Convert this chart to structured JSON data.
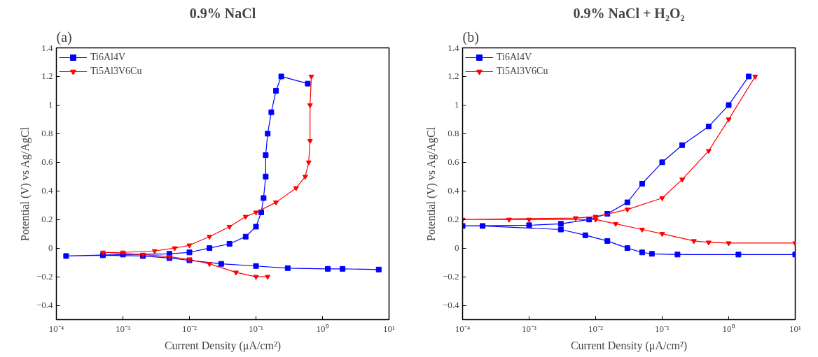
{
  "chart_data": [
    {
      "type": "line",
      "title": "0.9% NaCl",
      "annotations": [
        "(a)"
      ],
      "xlabel": "Current Density (μA/cm²)",
      "ylabel": "Potential (V) vs Ag/AgCl",
      "log": "x",
      "xlim": [
        0.0001,
        10
      ],
      "xticks": [
        {
          "value": 0.0001,
          "label": "10⁻⁴"
        },
        {
          "value": 0.001,
          "label": "10⁻³"
        },
        {
          "value": 0.01,
          "label": "10⁻²"
        },
        {
          "value": 0.1,
          "label": "10⁻¹"
        },
        {
          "value": 1,
          "label": "10⁰"
        },
        {
          "value": 10,
          "label": "10¹"
        }
      ],
      "ylim": [
        -0.5,
        1.4
      ],
      "yticks": [
        -0.4,
        -0.2,
        0.0,
        0.2,
        0.4,
        0.6,
        0.8,
        1.0,
        1.2,
        1.4
      ],
      "grid": false,
      "legend": "top left",
      "series": [
        {
          "name": "Ti6Al4V",
          "color": "#0000ff",
          "marker": "square",
          "x": [
            7,
            2,
            1.2,
            0.3,
            0.1,
            0.03,
            0.01,
            0.005,
            0.002,
            0.0005,
            0.00014,
            0.001,
            0.005,
            0.01,
            0.02,
            0.04,
            0.07,
            0.1,
            0.12,
            0.13,
            0.14,
            0.14,
            0.15,
            0.17,
            0.2,
            0.24,
            0.6
          ],
          "values": [
            -0.15,
            -0.145,
            -0.145,
            -0.14,
            -0.125,
            -0.11,
            -0.085,
            -0.07,
            -0.055,
            -0.05,
            -0.055,
            -0.045,
            -0.04,
            -0.03,
            0.0,
            0.03,
            0.08,
            0.15,
            0.25,
            0.35,
            0.5,
            0.65,
            0.8,
            0.95,
            1.1,
            1.2,
            1.15
          ]
        },
        {
          "name": "Ti5Al3V6Cu",
          "color": "#ff0000",
          "marker": "triangle",
          "x": [
            0.15,
            0.1,
            0.05,
            0.02,
            0.01,
            0.005,
            0.002,
            0.0005,
            0.001,
            0.003,
            0.006,
            0.01,
            0.02,
            0.04,
            0.07,
            0.1,
            0.2,
            0.4,
            0.55,
            0.62,
            0.65,
            0.65,
            0.68
          ],
          "values": [
            -0.2,
            -0.2,
            -0.17,
            -0.11,
            -0.08,
            -0.06,
            -0.045,
            -0.03,
            -0.03,
            -0.02,
            0.0,
            0.02,
            0.08,
            0.15,
            0.22,
            0.25,
            0.32,
            0.42,
            0.5,
            0.6,
            0.75,
            1.0,
            1.2
          ]
        }
      ]
    },
    {
      "type": "line",
      "title": "0.9% NaCl + H₂O₂",
      "annotations": [
        "(b)"
      ],
      "xlabel": "Current Density (μA/cm²)",
      "ylabel": "Potential (V) vs Ag/AgCl",
      "log": "x",
      "xlim": [
        0.0001,
        10
      ],
      "xticks": [
        {
          "value": 0.0001,
          "label": "10⁻⁴"
        },
        {
          "value": 0.001,
          "label": "10⁻³"
        },
        {
          "value": 0.01,
          "label": "10⁻²"
        },
        {
          "value": 0.1,
          "label": "10⁻¹"
        },
        {
          "value": 1,
          "label": "10⁰"
        },
        {
          "value": 10,
          "label": "10¹"
        }
      ],
      "ylim": [
        -0.5,
        1.4
      ],
      "yticks": [
        -0.4,
        -0.2,
        0.0,
        0.2,
        0.4,
        0.6,
        0.8,
        1.0,
        1.2,
        1.4
      ],
      "grid": false,
      "legend": "top left",
      "series": [
        {
          "name": "Ti6Al4V",
          "color": "#0000ff",
          "marker": "square",
          "x": [
            10,
            1.4,
            0.17,
            0.07,
            0.05,
            0.03,
            0.015,
            0.007,
            0.003,
            0.0002,
            0.0001,
            0.001,
            0.003,
            0.008,
            0.015,
            0.03,
            0.05,
            0.1,
            0.2,
            0.5,
            1.0,
            2.0
          ],
          "values": [
            -0.045,
            -0.045,
            -0.045,
            -0.04,
            -0.03,
            0.0,
            0.05,
            0.09,
            0.13,
            0.155,
            0.155,
            0.16,
            0.17,
            0.2,
            0.24,
            0.32,
            0.45,
            0.6,
            0.72,
            0.85,
            1.0,
            1.2
          ]
        },
        {
          "name": "Ti5Al3V6Cu",
          "color": "#ff0000",
          "marker": "triangle",
          "x": [
            10,
            1.0,
            0.5,
            0.3,
            0.1,
            0.05,
            0.02,
            0.01,
            0.001,
            0.0005,
            0.0001,
            0.005,
            0.01,
            0.03,
            0.1,
            0.2,
            0.5,
            1.0,
            2.5
          ],
          "values": [
            0.035,
            0.035,
            0.04,
            0.05,
            0.1,
            0.13,
            0.17,
            0.2,
            0.2,
            0.2,
            0.2,
            0.21,
            0.22,
            0.27,
            0.35,
            0.48,
            0.68,
            0.9,
            1.2
          ]
        }
      ]
    }
  ]
}
